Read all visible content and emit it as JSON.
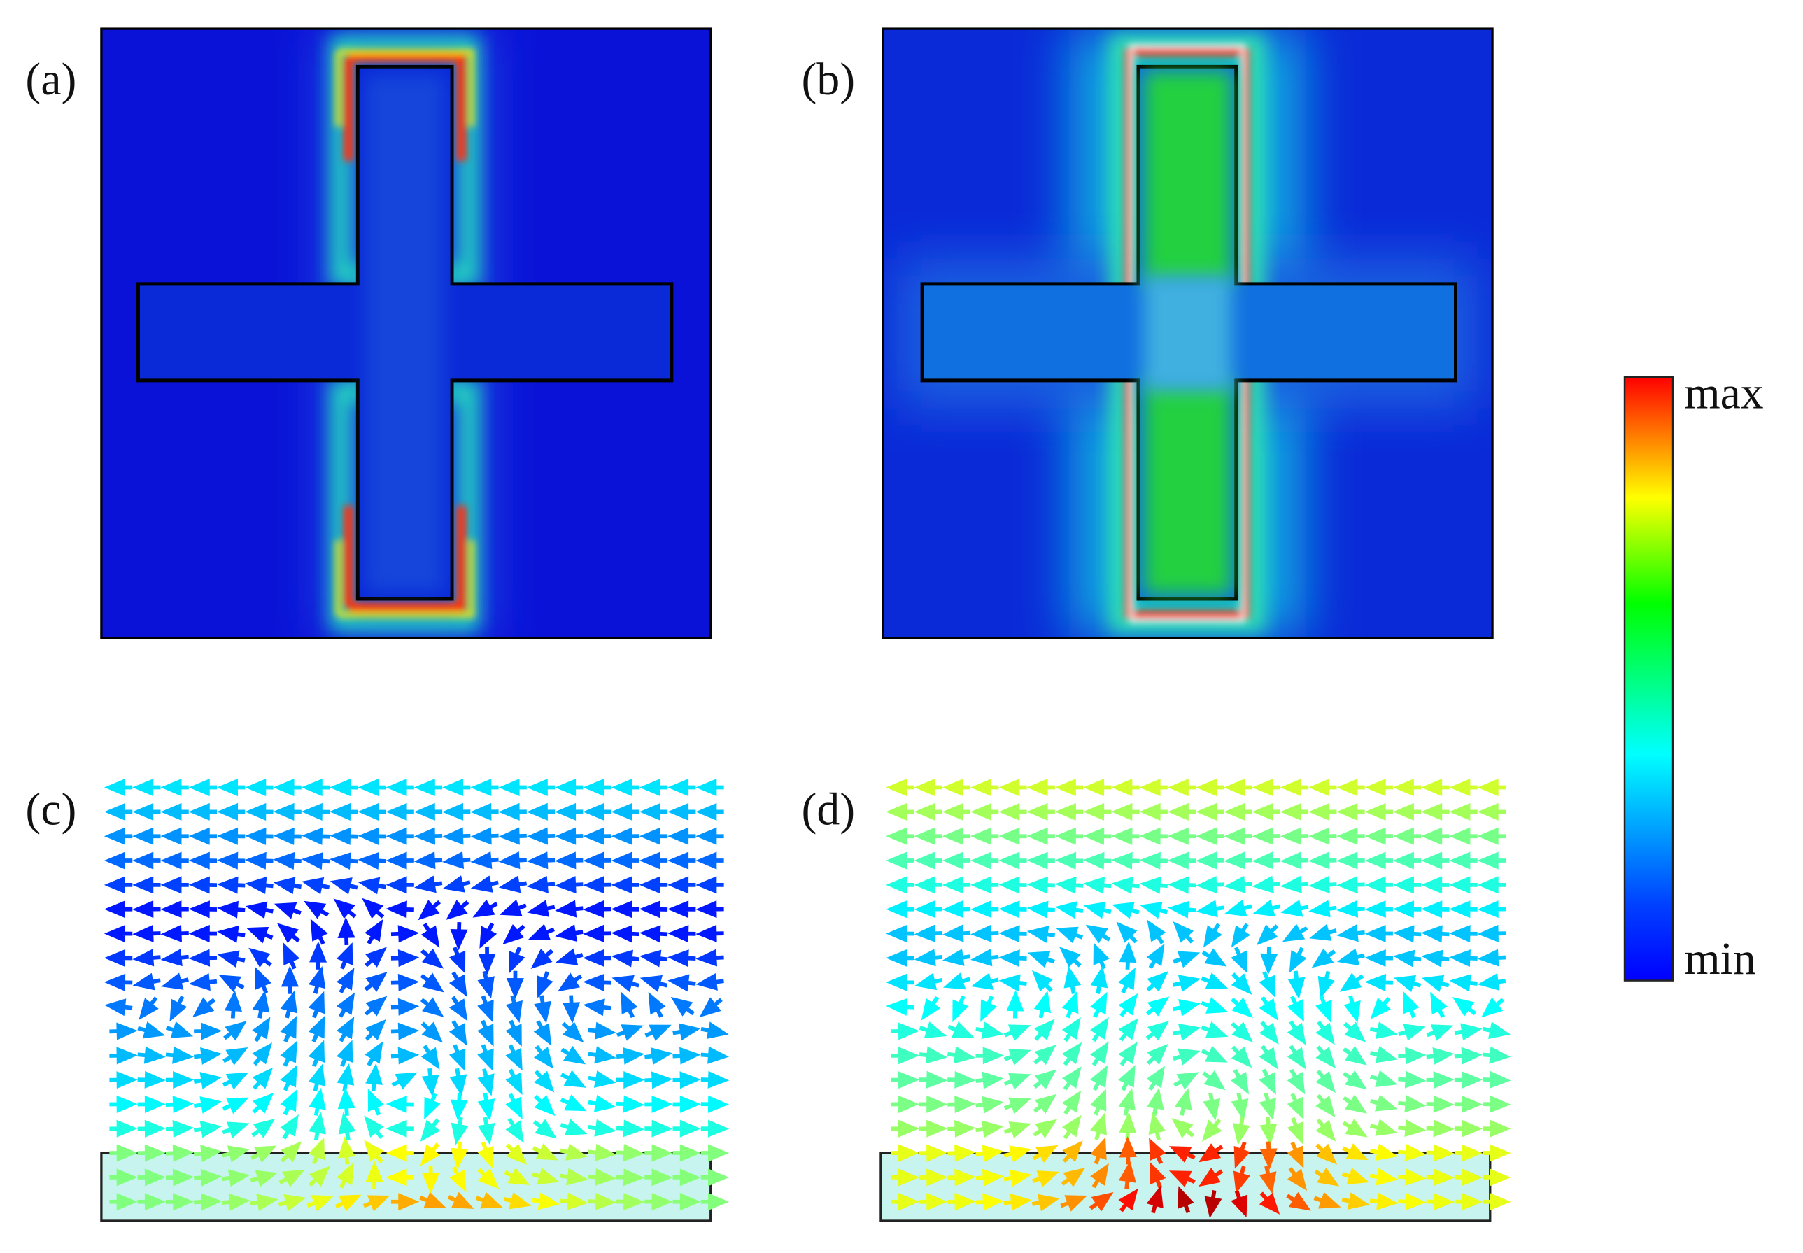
{
  "panels": [
    {
      "label": "(a)"
    },
    {
      "label": "(b)"
    },
    {
      "label": "(c)"
    },
    {
      "label": "(d)"
    }
  ],
  "colorbar": {
    "max_label": "max",
    "min_label": "min"
  }
}
